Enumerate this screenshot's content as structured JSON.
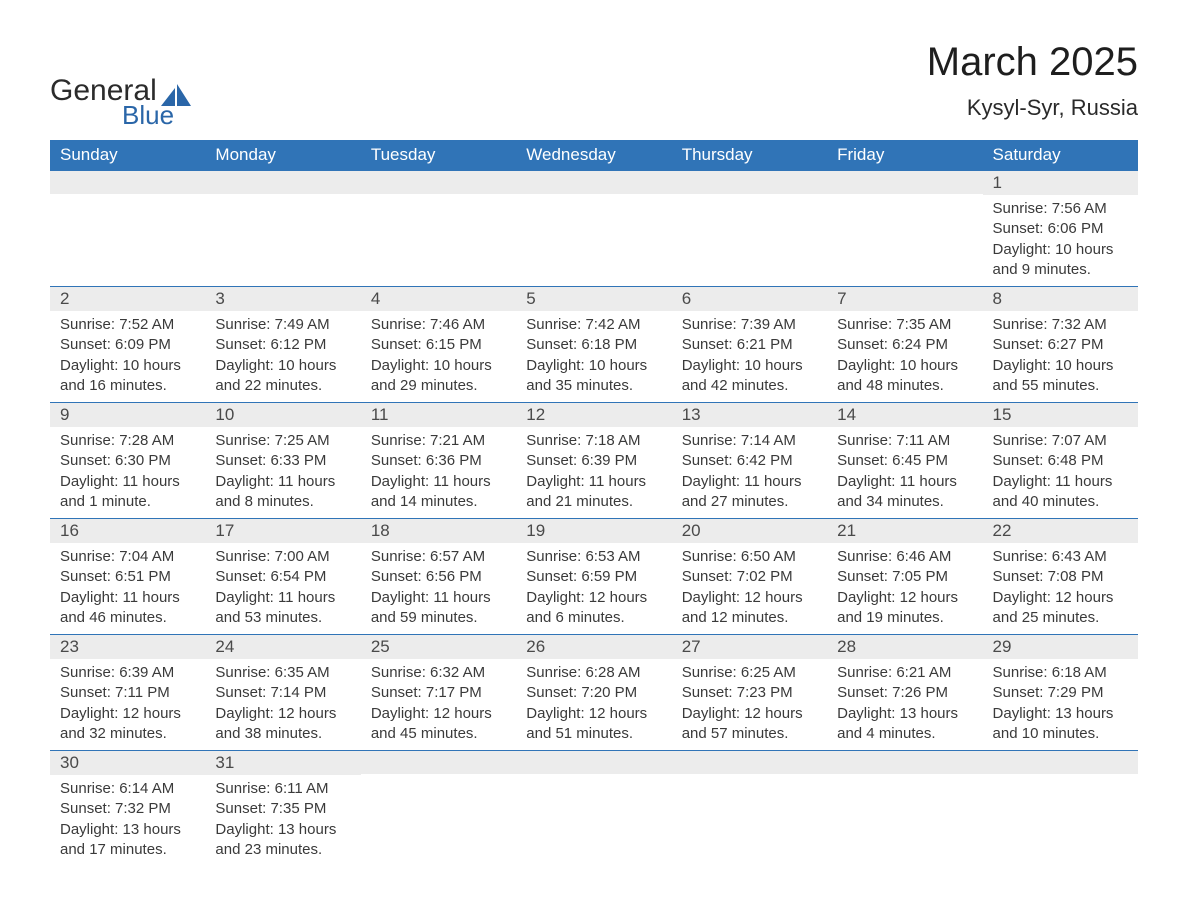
{
  "logo": {
    "text1": "General",
    "text2": "Blue",
    "icon_color": "#2a66a8"
  },
  "title": "March 2025",
  "subtitle": "Kysyl-Syr, Russia",
  "colors": {
    "header_bg": "#3074b7",
    "header_text": "#ffffff",
    "daynum_bg": "#ececec",
    "border": "#3074b7",
    "body_text": "#3a3a3a",
    "page_bg": "#ffffff"
  },
  "typography": {
    "title_fontsize": 40,
    "subtitle_fontsize": 22,
    "header_fontsize": 17,
    "day_fontsize": 17,
    "entry_fontsize": 15,
    "font_family": "Arial"
  },
  "weekdays": [
    "Sunday",
    "Monday",
    "Tuesday",
    "Wednesday",
    "Thursday",
    "Friday",
    "Saturday"
  ],
  "labels": {
    "sunrise": "Sunrise: ",
    "sunset": "Sunset: ",
    "daylight": "Daylight: "
  },
  "weeks": [
    [
      {},
      {},
      {},
      {},
      {},
      {},
      {
        "day": "1",
        "sunrise": "7:56 AM",
        "sunset": "6:06 PM",
        "daylight": "10 hours and 9 minutes."
      }
    ],
    [
      {
        "day": "2",
        "sunrise": "7:52 AM",
        "sunset": "6:09 PM",
        "daylight": "10 hours and 16 minutes."
      },
      {
        "day": "3",
        "sunrise": "7:49 AM",
        "sunset": "6:12 PM",
        "daylight": "10 hours and 22 minutes."
      },
      {
        "day": "4",
        "sunrise": "7:46 AM",
        "sunset": "6:15 PM",
        "daylight": "10 hours and 29 minutes."
      },
      {
        "day": "5",
        "sunrise": "7:42 AM",
        "sunset": "6:18 PM",
        "daylight": "10 hours and 35 minutes."
      },
      {
        "day": "6",
        "sunrise": "7:39 AM",
        "sunset": "6:21 PM",
        "daylight": "10 hours and 42 minutes."
      },
      {
        "day": "7",
        "sunrise": "7:35 AM",
        "sunset": "6:24 PM",
        "daylight": "10 hours and 48 minutes."
      },
      {
        "day": "8",
        "sunrise": "7:32 AM",
        "sunset": "6:27 PM",
        "daylight": "10 hours and 55 minutes."
      }
    ],
    [
      {
        "day": "9",
        "sunrise": "7:28 AM",
        "sunset": "6:30 PM",
        "daylight": "11 hours and 1 minute."
      },
      {
        "day": "10",
        "sunrise": "7:25 AM",
        "sunset": "6:33 PM",
        "daylight": "11 hours and 8 minutes."
      },
      {
        "day": "11",
        "sunrise": "7:21 AM",
        "sunset": "6:36 PM",
        "daylight": "11 hours and 14 minutes."
      },
      {
        "day": "12",
        "sunrise": "7:18 AM",
        "sunset": "6:39 PM",
        "daylight": "11 hours and 21 minutes."
      },
      {
        "day": "13",
        "sunrise": "7:14 AM",
        "sunset": "6:42 PM",
        "daylight": "11 hours and 27 minutes."
      },
      {
        "day": "14",
        "sunrise": "7:11 AM",
        "sunset": "6:45 PM",
        "daylight": "11 hours and 34 minutes."
      },
      {
        "day": "15",
        "sunrise": "7:07 AM",
        "sunset": "6:48 PM",
        "daylight": "11 hours and 40 minutes."
      }
    ],
    [
      {
        "day": "16",
        "sunrise": "7:04 AM",
        "sunset": "6:51 PM",
        "daylight": "11 hours and 46 minutes."
      },
      {
        "day": "17",
        "sunrise": "7:00 AM",
        "sunset": "6:54 PM",
        "daylight": "11 hours and 53 minutes."
      },
      {
        "day": "18",
        "sunrise": "6:57 AM",
        "sunset": "6:56 PM",
        "daylight": "11 hours and 59 minutes."
      },
      {
        "day": "19",
        "sunrise": "6:53 AM",
        "sunset": "6:59 PM",
        "daylight": "12 hours and 6 minutes."
      },
      {
        "day": "20",
        "sunrise": "6:50 AM",
        "sunset": "7:02 PM",
        "daylight": "12 hours and 12 minutes."
      },
      {
        "day": "21",
        "sunrise": "6:46 AM",
        "sunset": "7:05 PM",
        "daylight": "12 hours and 19 minutes."
      },
      {
        "day": "22",
        "sunrise": "6:43 AM",
        "sunset": "7:08 PM",
        "daylight": "12 hours and 25 minutes."
      }
    ],
    [
      {
        "day": "23",
        "sunrise": "6:39 AM",
        "sunset": "7:11 PM",
        "daylight": "12 hours and 32 minutes."
      },
      {
        "day": "24",
        "sunrise": "6:35 AM",
        "sunset": "7:14 PM",
        "daylight": "12 hours and 38 minutes."
      },
      {
        "day": "25",
        "sunrise": "6:32 AM",
        "sunset": "7:17 PM",
        "daylight": "12 hours and 45 minutes."
      },
      {
        "day": "26",
        "sunrise": "6:28 AM",
        "sunset": "7:20 PM",
        "daylight": "12 hours and 51 minutes."
      },
      {
        "day": "27",
        "sunrise": "6:25 AM",
        "sunset": "7:23 PM",
        "daylight": "12 hours and 57 minutes."
      },
      {
        "day": "28",
        "sunrise": "6:21 AM",
        "sunset": "7:26 PM",
        "daylight": "13 hours and 4 minutes."
      },
      {
        "day": "29",
        "sunrise": "6:18 AM",
        "sunset": "7:29 PM",
        "daylight": "13 hours and 10 minutes."
      }
    ],
    [
      {
        "day": "30",
        "sunrise": "6:14 AM",
        "sunset": "7:32 PM",
        "daylight": "13 hours and 17 minutes."
      },
      {
        "day": "31",
        "sunrise": "6:11 AM",
        "sunset": "7:35 PM",
        "daylight": "13 hours and 23 minutes."
      },
      {},
      {},
      {},
      {},
      {}
    ]
  ]
}
